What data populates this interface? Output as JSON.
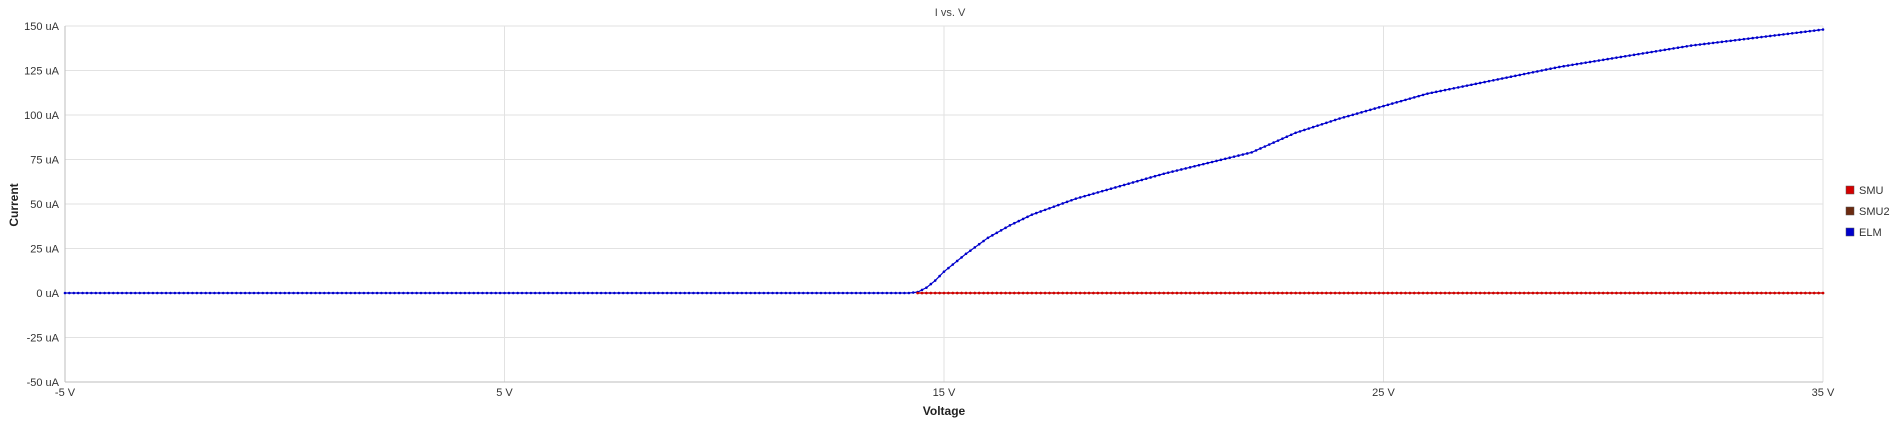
{
  "chart_data": {
    "type": "line",
    "title": "I vs. V",
    "xlabel": "Voltage",
    "ylabel": "Current",
    "xlim": [
      -5,
      35
    ],
    "ylim": [
      -50,
      150
    ],
    "x_ticks": [
      {
        "value": -5,
        "label": "-5 V"
      },
      {
        "value": 5,
        "label": "5 V"
      },
      {
        "value": 15,
        "label": "15 V"
      },
      {
        "value": 25,
        "label": "25 V"
      },
      {
        "value": 35,
        "label": "35 V"
      }
    ],
    "y_ticks": [
      {
        "value": 150,
        "label": "150 uA"
      },
      {
        "value": 125,
        "label": "125 uA"
      },
      {
        "value": 100,
        "label": "100 uA"
      },
      {
        "value": 75,
        "label": "75 uA"
      },
      {
        "value": 50,
        "label": "50 uA"
      },
      {
        "value": 25,
        "label": "25 uA"
      },
      {
        "value": 0,
        "label": "0 uA"
      },
      {
        "value": -25,
        "label": "-25 uA"
      },
      {
        "value": -50,
        "label": "-50 uA"
      }
    ],
    "grid": true,
    "legend_position": "right",
    "series": [
      {
        "name": "SMU",
        "color": "#d40000",
        "x_start": 14.4,
        "x_end": 35,
        "x_step": 0.1,
        "y_constant": 0,
        "points": [
          [
            14.4,
            0
          ],
          [
            20,
            0
          ],
          [
            25,
            0
          ],
          [
            30,
            0
          ],
          [
            35,
            0
          ]
        ]
      },
      {
        "name": "SMU2",
        "color": "#6b2a10",
        "x_start": 14.4,
        "x_end": 35,
        "x_step": 0.1,
        "y_constant": 0,
        "points": [
          [
            14.4,
            0
          ],
          [
            20,
            0
          ],
          [
            25,
            0
          ],
          [
            30,
            0
          ],
          [
            35,
            0
          ]
        ]
      },
      {
        "name": "ELM",
        "color": "#0000cc",
        "x_start": -5,
        "x_end": 35,
        "x_step": 0.1,
        "points": [
          [
            -5,
            0
          ],
          [
            0,
            0
          ],
          [
            5,
            0
          ],
          [
            10,
            0
          ],
          [
            14.2,
            0
          ],
          [
            14.4,
            0.5
          ],
          [
            14.6,
            3
          ],
          [
            14.8,
            7
          ],
          [
            15,
            12
          ],
          [
            15.5,
            22
          ],
          [
            16,
            31
          ],
          [
            16.5,
            38
          ],
          [
            17,
            44
          ],
          [
            18,
            53
          ],
          [
            19,
            60
          ],
          [
            20,
            67
          ],
          [
            21,
            73
          ],
          [
            22,
            79
          ],
          [
            23,
            90
          ],
          [
            24,
            98
          ],
          [
            25,
            105
          ],
          [
            26,
            112
          ],
          [
            27,
            117
          ],
          [
            28,
            122
          ],
          [
            29,
            127
          ],
          [
            30,
            131
          ],
          [
            31,
            135
          ],
          [
            32,
            139
          ],
          [
            33,
            142
          ],
          [
            34,
            145
          ],
          [
            35,
            148
          ]
        ]
      }
    ]
  }
}
